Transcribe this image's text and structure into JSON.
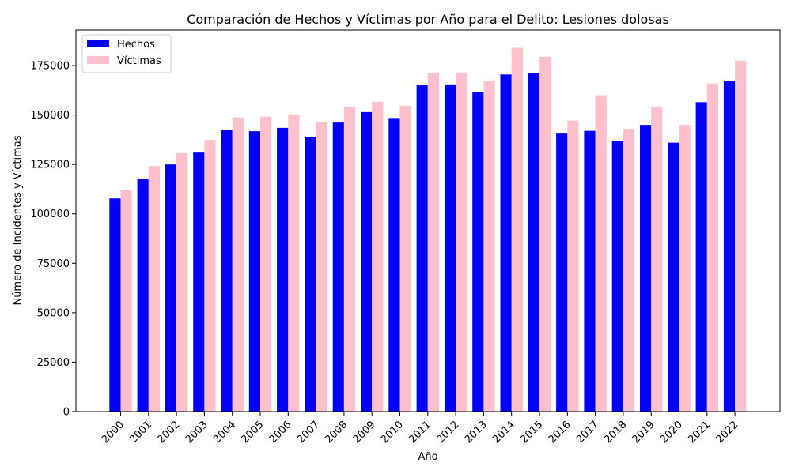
{
  "chart_data": {
    "type": "bar",
    "title": "Comparación de Hechos y Víctimas por Año para el Delito: Lesiones dolosas",
    "xlabel": "Año",
    "ylabel": "Número de Incidentes y Víctimas",
    "ylim": [
      0,
      193000
    ],
    "yticks": [
      0,
      25000,
      50000,
      75000,
      100000,
      125000,
      150000,
      175000
    ],
    "legend_position": "top-left",
    "categories": [
      "2000",
      "2001",
      "2002",
      "2003",
      "2004",
      "2005",
      "2006",
      "2007",
      "2008",
      "2009",
      "2010",
      "2011",
      "2012",
      "2013",
      "2014",
      "2015",
      "2016",
      "2017",
      "2018",
      "2019",
      "2020",
      "2021",
      "2022"
    ],
    "series": [
      {
        "name": "Hechos",
        "color": "#0000ff",
        "values": [
          107800,
          117500,
          125000,
          131000,
          142300,
          141800,
          143500,
          139000,
          146200,
          151500,
          148500,
          165000,
          165500,
          161500,
          170500,
          171000,
          141000,
          142000,
          136700,
          145000,
          136000,
          156500,
          167000
        ]
      },
      {
        "name": "Víctimas",
        "color": "#ffc0cb",
        "values": [
          112300,
          124200,
          130700,
          137500,
          148800,
          149200,
          150300,
          146300,
          154200,
          156700,
          154700,
          171300,
          171500,
          167000,
          184000,
          179500,
          147200,
          160000,
          143000,
          154200,
          145000,
          166000,
          177500
        ]
      }
    ]
  }
}
